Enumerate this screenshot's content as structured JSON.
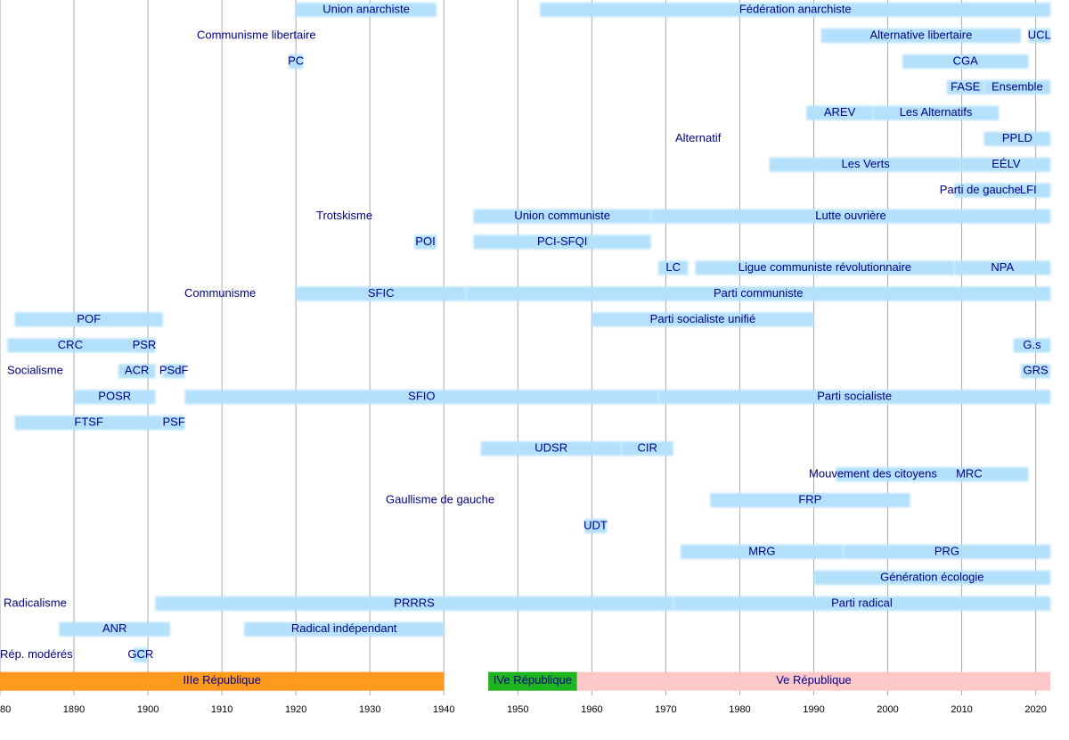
{
  "chart_data": {
    "type": "timeline",
    "xlim": [
      1880,
      2024.5
    ],
    "xticks": [
      {
        "value": 1880,
        "label": "80"
      },
      1890,
      1900,
      1910,
      1920,
      1930,
      1940,
      1950,
      1960,
      1970,
      1980,
      1990,
      2000,
      2010,
      2020
    ],
    "grid": true,
    "bar_color": "#b3e0fb",
    "rows": [
      {
        "bars": [
          {
            "name": "Union anarchiste",
            "start": 1920,
            "end": 1939
          },
          {
            "name": "Fédération anarchiste",
            "start": 1953,
            "end": 2022
          }
        ]
      },
      {
        "label": "Communisme libertaire",
        "bars": [
          {
            "name": "Alternative libertaire",
            "start": 1991,
            "end": 2018
          },
          {
            "name": "UCL",
            "start": 2019,
            "end": 2022
          }
        ]
      },
      {
        "bars": [
          {
            "name": "PC",
            "start": 1919,
            "end": 1921
          },
          {
            "name": "CGA",
            "start": 2002,
            "end": 2019
          }
        ]
      },
      {
        "bars": [
          {
            "name": "FASE",
            "start": 2008,
            "end": 2013
          },
          {
            "name": "Ensemble",
            "start": 2013,
            "end": 2022
          }
        ]
      },
      {
        "bars": [
          {
            "name": "AREV",
            "start": 1989,
            "end": 1998
          },
          {
            "name": "Les Alternatifs",
            "start": 1998,
            "end": 2015
          }
        ]
      },
      {
        "label": "Alternatif",
        "bars": [
          {
            "name": "PPLD",
            "start": 2013,
            "end": 2022
          }
        ]
      },
      {
        "bars": [
          {
            "name": "Les Verts",
            "start": 1984,
            "end": 2010
          },
          {
            "name": "EÉLV",
            "start": 2010,
            "end": 2022
          }
        ]
      },
      {
        "bars": [
          {
            "name": "Parti de gauche",
            "start": 2009,
            "end": 2016
          },
          {
            "name": "LFI",
            "start": 2016,
            "end": 2022
          }
        ]
      },
      {
        "label": "Trotskisme",
        "bars": [
          {
            "name": "Union communiste",
            "start": 1944,
            "end": 1968
          },
          {
            "name": "Lutte ouvrière",
            "start": 1968,
            "end": 2022
          }
        ]
      },
      {
        "bars": [
          {
            "name": "POI",
            "start": 1936,
            "end": 1939
          },
          {
            "name": "PCI-SFQI",
            "start": 1944,
            "end": 1968
          }
        ]
      },
      {
        "bars": [
          {
            "name": "LC",
            "start": 1969,
            "end": 1973
          },
          {
            "name": "Ligue communiste révolutionnaire",
            "start": 1974,
            "end": 2009
          },
          {
            "name": "NPA",
            "start": 2009,
            "end": 2022
          }
        ]
      },
      {
        "label": "Communisme",
        "bars": [
          {
            "name": "SFIC",
            "start": 1920,
            "end": 1943
          },
          {
            "name": "Parti communiste",
            "start": 1943,
            "end": 2022
          }
        ]
      },
      {
        "bars": [
          {
            "name": "POF",
            "start": 1882,
            "end": 1902
          },
          {
            "name": "Parti socialiste unifié",
            "start": 1960,
            "end": 1990
          }
        ]
      },
      {
        "bars": [
          {
            "name": "CRC",
            "start": 1881,
            "end": 1898
          },
          {
            "name": "PSR",
            "start": 1898,
            "end": 1901
          },
          {
            "name": "G.s",
            "start": 2017,
            "end": 2022
          }
        ]
      },
      {
        "label": "Socialisme",
        "bars": [
          {
            "name": "ACR",
            "start": 1896,
            "end": 1901
          },
          {
            "name": "PSdF",
            "start": 1902,
            "end": 1905
          },
          {
            "name": "GRS",
            "start": 2018,
            "end": 2022
          }
        ]
      },
      {
        "bars": [
          {
            "name": "POSR",
            "start": 1890,
            "end": 1901
          },
          {
            "name": "SFIO",
            "start": 1905,
            "end": 1969
          },
          {
            "name": "Parti socialiste",
            "start": 1969,
            "end": 2022
          }
        ]
      },
      {
        "bars": [
          {
            "name": "FTSF",
            "start": 1882,
            "end": 1902
          },
          {
            "name": "PSF",
            "start": 1902,
            "end": 1905
          }
        ]
      },
      {
        "bars": [
          {
            "name": "UDSR",
            "start": 1945,
            "end": 1964
          },
          {
            "name": "CIR",
            "start": 1964,
            "end": 1971
          }
        ]
      },
      {
        "bars": [
          {
            "name": "Mouvement des citoyens",
            "start": 1993,
            "end": 2003
          },
          {
            "name": "MRC",
            "start": 2003,
            "end": 2019
          }
        ]
      },
      {
        "label": "Gaullisme de gauche",
        "bars": [
          {
            "name": "FRP",
            "start": 1976,
            "end": 2003
          }
        ]
      },
      {
        "bars": [
          {
            "name": "UDT",
            "start": 1959,
            "end": 1962
          }
        ]
      },
      {
        "bars": [
          {
            "name": "MRG",
            "start": 1972,
            "end": 1994
          },
          {
            "name": "PRG",
            "start": 1994,
            "end": 2022
          }
        ]
      },
      {
        "bars": [
          {
            "name": "Génération écologie",
            "start": 1990,
            "end": 2022
          }
        ]
      },
      {
        "label": "Radicalisme",
        "bars": [
          {
            "name": "PRRRS",
            "start": 1901,
            "end": 1971
          },
          {
            "name": "Parti radical",
            "start": 1971,
            "end": 2022
          }
        ]
      },
      {
        "bars": [
          {
            "name": "ANR",
            "start": 1888,
            "end": 1903
          },
          {
            "name": "Radical indépendant",
            "start": 1913,
            "end": 1940
          }
        ]
      },
      {
        "label": "Rép. modérés",
        "bars": [
          {
            "name": "GCR",
            "start": 1898,
            "end": 1900
          }
        ]
      }
    ],
    "eras": [
      {
        "name": "IIIe République",
        "start": 1880,
        "end": 1940,
        "color": "#ff9a1f"
      },
      {
        "name": "IVe République",
        "start": 1946,
        "end": 1958,
        "color": "#1fb51f"
      },
      {
        "name": "Ve République",
        "start": 1958,
        "end": 2022,
        "color": "#ffc8c8"
      }
    ]
  }
}
